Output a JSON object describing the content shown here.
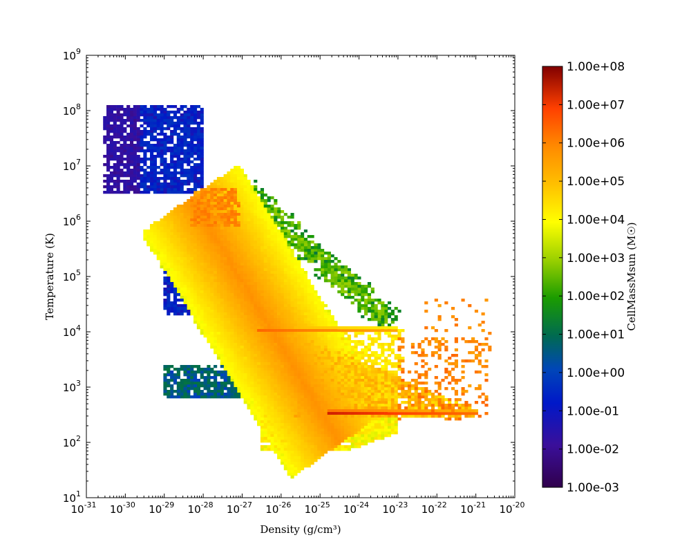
{
  "chart_data": {
    "type": "heatmap",
    "title": "",
    "xlabel": "Density  (g/cm³)",
    "ylabel": "Temperature  (K)",
    "x_scale": "log",
    "y_scale": "log",
    "xlim": [
      1e-31,
      1e-20
    ],
    "ylim": [
      10,
      1000000000.0
    ],
    "x_ticks": [
      {
        "base": "10",
        "exp": "-31"
      },
      {
        "base": "10",
        "exp": "-30"
      },
      {
        "base": "10",
        "exp": "-29"
      },
      {
        "base": "10",
        "exp": "-28"
      },
      {
        "base": "10",
        "exp": "-27"
      },
      {
        "base": "10",
        "exp": "-26"
      },
      {
        "base": "10",
        "exp": "-25"
      },
      {
        "base": "10",
        "exp": "-24"
      },
      {
        "base": "10",
        "exp": "-23"
      },
      {
        "base": "10",
        "exp": "-22"
      },
      {
        "base": "10",
        "exp": "-21"
      },
      {
        "base": "10",
        "exp": "-20"
      }
    ],
    "y_ticks": [
      {
        "base": "10",
        "exp": "1"
      },
      {
        "base": "10",
        "exp": "2"
      },
      {
        "base": "10",
        "exp": "3"
      },
      {
        "base": "10",
        "exp": "4"
      },
      {
        "base": "10",
        "exp": "5"
      },
      {
        "base": "10",
        "exp": "6"
      },
      {
        "base": "10",
        "exp": "7"
      },
      {
        "base": "10",
        "exp": "8"
      },
      {
        "base": "10",
        "exp": "9"
      }
    ],
    "grid": false,
    "colorbar": {
      "label": "CellMassMsun  (M☉)",
      "scale": "log",
      "colormap": "rainbow (purple-blue-green-yellow-orange-red)",
      "range": [
        0.001,
        100000000
      ],
      "tick_labels": [
        "1.00e-03",
        "1.00e-02",
        "1.00e-01",
        "1.00e+00",
        "1.00e+01",
        "1.00e+02",
        "1.00e+03",
        "1.00e+04",
        "1.00e+05",
        "1.00e+06",
        "1.00e+07",
        "1.00e+08"
      ]
    },
    "regions": [
      {
        "name": "main diagonal band",
        "log_density_from": -28.3,
        "log_temperature_from": 6.4,
        "log_density_to": -24.5,
        "log_temperature_to": 2.0,
        "log_mass": 4.5
      },
      {
        "name": "horizontal ridge at 1e4 K",
        "log_density_range": [
          -26.6,
          -23.0
        ],
        "log_temperature": 4.0,
        "log_mass": 6.5
      },
      {
        "name": "horizontal ridge at ~300 K",
        "log_density_range": [
          -24.8,
          -21.0
        ],
        "log_temperature": 2.5,
        "log_mass": 7.5
      },
      {
        "name": "hot low-density tail",
        "log_density_range": [
          -30.5,
          -28.0
        ],
        "log_temperature_range": [
          6.5,
          8.1
        ],
        "log_mass": -1.0
      },
      {
        "name": "low-mass mid-temperature clump",
        "log_density_range": [
          -29.0,
          -27.0
        ],
        "log_temperature_range": [
          4.3,
          5.3
        ],
        "log_mass": -1.0
      },
      {
        "name": "cool low-density streak",
        "log_density_range": [
          -29.0,
          -26.5
        ],
        "log_temperature_range": [
          2.8,
          3.4
        ],
        "log_mass": 0.3
      }
    ]
  }
}
